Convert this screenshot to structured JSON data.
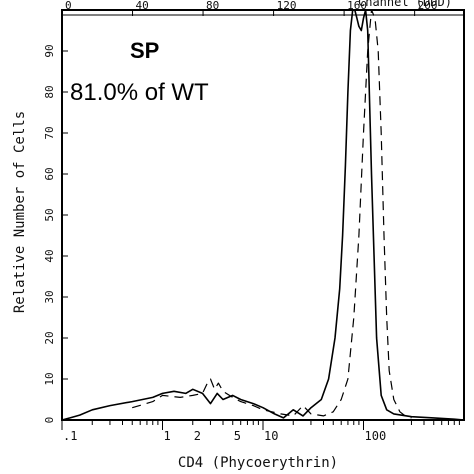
{
  "chart_data": {
    "type": "line",
    "title": "SP",
    "annotation": "81.0% of WT",
    "xlabel": "CD4 (Phycoerythrin)",
    "ylabel": "Relative Number of Cells",
    "top_axis_label": "Channel (DDD)",
    "x_scale": "log",
    "xlim": [
      0.1,
      1000
    ],
    "ylim": [
      0,
      100
    ],
    "top_ticks": [
      "0",
      "40",
      "80",
      "120",
      "160",
      "200"
    ],
    "bottom_ticks": [
      {
        "label": ".1",
        "value": 0.1
      },
      {
        "label": "1",
        "value": 1
      },
      {
        "label": "2",
        "value": 2
      },
      {
        "label": "5",
        "value": 5
      },
      {
        "label": "10",
        "value": 10
      },
      {
        "label": "100",
        "value": 100
      }
    ],
    "y_ticks": [
      "0",
      "10",
      "20",
      "30",
      "40",
      "50",
      "60",
      "70",
      "80",
      "90"
    ],
    "series": [
      {
        "style": "solid",
        "x": [
          0.1,
          0.12,
          0.15,
          0.2,
          0.3,
          0.5,
          0.8,
          1.0,
          1.3,
          1.7,
          2.0,
          2.5,
          3.0,
          3.5,
          4.0,
          5.0,
          6.0,
          8.0,
          10.0,
          13.0,
          16.0,
          20.0,
          25.0,
          30.0,
          38.0,
          45.0,
          52.0,
          58.0,
          62.0,
          66.0,
          70.0,
          74.0,
          78.0,
          82.0,
          86.0,
          90.0,
          95.0,
          100.0,
          105.0,
          110.0,
          120.0,
          135.0,
          150.0,
          170.0,
          200.0,
          300.0,
          500.0,
          800.0,
          1000.0
        ],
        "y": [
          0,
          0.5,
          1.2,
          2.5,
          3.5,
          4.5,
          5.5,
          6.5,
          7.0,
          6.5,
          7.5,
          6.5,
          4.0,
          6.5,
          5.0,
          6.0,
          5.0,
          4.0,
          3.0,
          1.5,
          0.5,
          2.5,
          1.0,
          3.0,
          5.0,
          10.0,
          20.0,
          32.0,
          45.0,
          62.0,
          80.0,
          95.0,
          100.0,
          100.0,
          98.0,
          96.0,
          95.0,
          98.0,
          100.0,
          95.0,
          60.0,
          20.0,
          6.0,
          2.5,
          1.5,
          0.8,
          0.5,
          0.2,
          0.0
        ]
      },
      {
        "style": "dashed",
        "x": [
          0.5,
          0.8,
          1.0,
          1.5,
          2.0,
          2.5,
          2.8,
          3.0,
          3.3,
          3.6,
          4.0,
          5.0,
          6.0,
          8.0,
          10.0,
          15.0,
          20.0,
          25.0,
          30.0,
          40.0,
          50.0,
          60.0,
          70.0,
          80.0,
          90.0,
          100.0,
          110.0,
          120.0,
          130.0,
          140.0,
          150.0,
          160.0,
          170.0,
          180.0,
          200.0,
          230.0,
          260.0,
          300.0
        ],
        "y": [
          3.0,
          4.5,
          6.0,
          5.5,
          6.0,
          6.5,
          9.0,
          10.0,
          7.5,
          9.0,
          7.0,
          5.5,
          4.5,
          3.5,
          2.5,
          1.5,
          1.0,
          3.5,
          1.5,
          1.0,
          2.0,
          5.0,
          10.0,
          25.0,
          45.0,
          70.0,
          90.0,
          100.0,
          98.0,
          90.0,
          70.0,
          45.0,
          25.0,
          12.0,
          5.0,
          2.0,
          1.0,
          0.5
        ]
      }
    ]
  }
}
